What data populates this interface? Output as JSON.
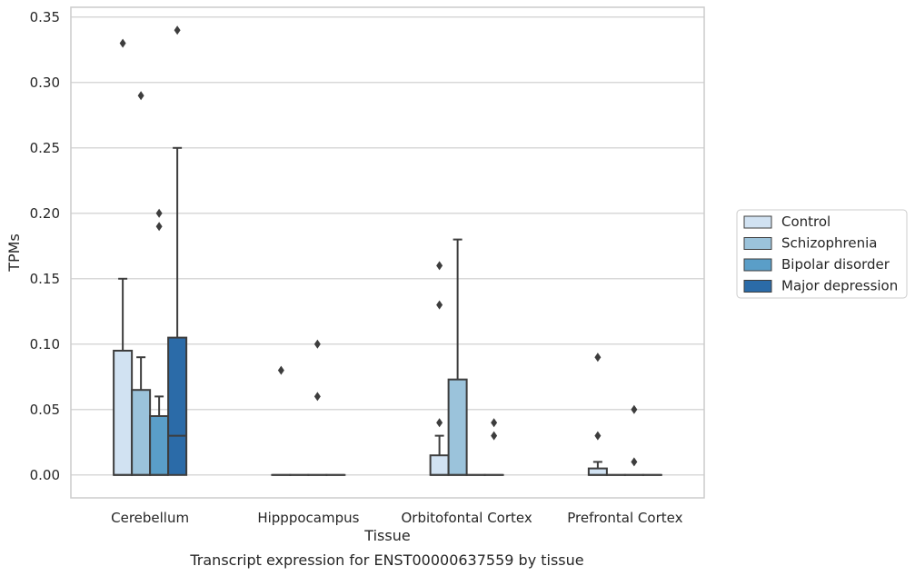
{
  "chart_data": {
    "type": "box",
    "categories": [
      "Cerebellum",
      "Hipppocampus",
      "Orbitofontal Cortex",
      "Prefrontal Cortex"
    ],
    "xlabel": "Tissue",
    "ylabel": "TPMs",
    "caption": "Transcript expression for ENST00000637559 by tissue",
    "ylim": [
      -0.0175,
      0.3575
    ],
    "yticks": [
      "0.00",
      "0.05",
      "0.10",
      "0.15",
      "0.20",
      "0.25",
      "0.30",
      "0.35"
    ],
    "yticks_values": [
      0,
      0.05,
      0.1,
      0.15,
      0.2,
      0.25,
      0.3,
      0.35
    ],
    "grid": "horizontal",
    "legend_position": "right",
    "series": [
      {
        "name": "Control",
        "color": "#d1e2f2",
        "boxes": [
          {
            "q1": 0,
            "median": 0,
            "q3": 0.095,
            "whisker_low": 0,
            "whisker_high": 0.15,
            "outliers": [
              0.33
            ]
          },
          {
            "q1": 0,
            "median": 0,
            "q3": 0,
            "whisker_low": 0,
            "whisker_high": 0,
            "outliers": [
              0.08
            ]
          },
          {
            "q1": 0,
            "median": 0,
            "q3": 0.015,
            "whisker_low": 0,
            "whisker_high": 0.03,
            "outliers": [
              0.04,
              0.13,
              0.16
            ]
          },
          {
            "q1": 0,
            "median": 0,
            "q3": 0.005,
            "whisker_low": 0,
            "whisker_high": 0.01,
            "outliers": [
              0.03,
              0.09
            ]
          }
        ]
      },
      {
        "name": "Schizophrenia",
        "color": "#9bc3db",
        "boxes": [
          {
            "q1": 0,
            "median": 0,
            "q3": 0.065,
            "whisker_low": 0,
            "whisker_high": 0.09,
            "outliers": [
              0.29
            ]
          },
          {
            "q1": 0,
            "median": 0,
            "q3": 0,
            "whisker_low": 0,
            "whisker_high": 0,
            "outliers": []
          },
          {
            "q1": 0,
            "median": 0,
            "q3": 0.073,
            "whisker_low": 0,
            "whisker_high": 0.18,
            "outliers": []
          },
          {
            "q1": 0,
            "median": 0,
            "q3": 0,
            "whisker_low": 0,
            "whisker_high": 0,
            "outliers": []
          }
        ]
      },
      {
        "name": "Bipolar disorder",
        "color": "#5a9ec8",
        "boxes": [
          {
            "q1": 0,
            "median": 0,
            "q3": 0.045,
            "whisker_low": 0,
            "whisker_high": 0.06,
            "outliers": [
              0.19,
              0.2
            ]
          },
          {
            "q1": 0,
            "median": 0,
            "q3": 0,
            "whisker_low": 0,
            "whisker_high": 0,
            "outliers": [
              0.06,
              0.1
            ]
          },
          {
            "q1": 0,
            "median": 0,
            "q3": 0,
            "whisker_low": 0,
            "whisker_high": 0,
            "outliers": []
          },
          {
            "q1": 0,
            "median": 0,
            "q3": 0,
            "whisker_low": 0,
            "whisker_high": 0,
            "outliers": [
              0.05,
              0.01
            ]
          }
        ]
      },
      {
        "name": "Major depression",
        "color": "#2b6ba8",
        "boxes": [
          {
            "q1": 0,
            "median": 0.03,
            "q3": 0.105,
            "whisker_low": 0,
            "whisker_high": 0.25,
            "outliers": [
              0.34
            ]
          },
          {
            "q1": 0,
            "median": 0,
            "q3": 0,
            "whisker_low": 0,
            "whisker_high": 0,
            "outliers": []
          },
          {
            "q1": 0,
            "median": 0,
            "q3": 0,
            "whisker_low": 0,
            "whisker_high": 0,
            "outliers": [
              0.03,
              0.04
            ]
          },
          {
            "q1": 0,
            "median": 0,
            "q3": 0,
            "whisker_low": 0,
            "whisker_high": 0,
            "outliers": []
          }
        ]
      }
    ]
  }
}
